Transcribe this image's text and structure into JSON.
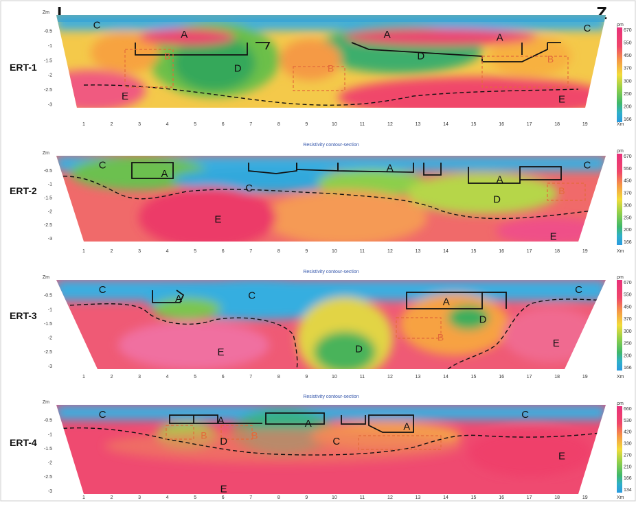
{
  "header": {
    "left_label": "I",
    "right_label": "Z"
  },
  "plot_title": "Resistivity contour-section",
  "depth_axis_label": "Zm",
  "x_axis_unit": "Xm",
  "colorbar_unit": "ρm",
  "x_ticks": [
    "1",
    "2",
    "3",
    "4",
    "5",
    "6",
    "7",
    "8",
    "9",
    "10",
    "11",
    "12",
    "13",
    "14",
    "15",
    "16",
    "17",
    "18",
    "19"
  ],
  "depth_ticks": [
    "-0.5",
    "-1",
    "-1.5",
    "-2",
    "-2.5",
    "-3"
  ],
  "panels": [
    {
      "name": "ERT-1",
      "colorbar_ticks": [
        "670",
        "550",
        "450",
        "370",
        "300",
        "250",
        "200",
        "166"
      ],
      "zones": [
        {
          "label": "C",
          "x": 1,
          "z": -0.3
        },
        {
          "label": "A",
          "x": 4.1,
          "z": -0.6
        },
        {
          "label": "A",
          "x": 11.3,
          "z": -0.6
        },
        {
          "label": "A",
          "x": 15.3,
          "z": -0.7
        },
        {
          "label": "C",
          "x": 18.4,
          "z": -0.4
        },
        {
          "label": "B",
          "x": 3.5,
          "z": -1.3
        },
        {
          "label": "D",
          "x": 6,
          "z": -1.7
        },
        {
          "label": "B",
          "x": 9.3,
          "z": -1.7
        },
        {
          "label": "D",
          "x": 12.5,
          "z": -1.3
        },
        {
          "label": "B",
          "x": 17.1,
          "z": -1.4
        },
        {
          "label": "E",
          "x": 2,
          "z": -2.6
        },
        {
          "label": "E",
          "x": 17.5,
          "z": -2.7
        }
      ]
    },
    {
      "name": "ERT-2",
      "colorbar_ticks": [
        "670",
        "550",
        "450",
        "370",
        "300",
        "250",
        "200",
        "166"
      ],
      "zones": [
        {
          "label": "C",
          "x": 1.2,
          "z": -0.3
        },
        {
          "label": "A",
          "x": 3.4,
          "z": -0.6
        },
        {
          "label": "A",
          "x": 11.4,
          "z": -0.4
        },
        {
          "label": "C",
          "x": 6.4,
          "z": -1.1
        },
        {
          "label": "A",
          "x": 15.3,
          "z": -0.8
        },
        {
          "label": "C",
          "x": 18.4,
          "z": -0.3
        },
        {
          "label": "B",
          "x": 17.5,
          "z": -1.2
        },
        {
          "label": "D",
          "x": 15.2,
          "z": -1.5
        },
        {
          "label": "E",
          "x": 5.3,
          "z": -2.2
        },
        {
          "label": "E",
          "x": 17.2,
          "z": -2.8
        }
      ]
    },
    {
      "name": "ERT-3",
      "colorbar_ticks": [
        "670",
        "550",
        "450",
        "370",
        "300",
        "250",
        "200",
        "166"
      ],
      "zones": [
        {
          "label": "C",
          "x": 1.2,
          "z": -0.3
        },
        {
          "label": "A",
          "x": 3.9,
          "z": -0.6
        },
        {
          "label": "C",
          "x": 6.5,
          "z": -0.5
        },
        {
          "label": "A",
          "x": 13.4,
          "z": -0.7
        },
        {
          "label": "D",
          "x": 14.7,
          "z": -1.3
        },
        {
          "label": "C",
          "x": 18.1,
          "z": -0.3
        },
        {
          "label": "B",
          "x": 13.2,
          "z": -1.9
        },
        {
          "label": "E",
          "x": 5.4,
          "z": -2.4
        },
        {
          "label": "D",
          "x": 10.3,
          "z": -2.3
        },
        {
          "label": "E",
          "x": 17.3,
          "z": -2.1
        }
      ]
    },
    {
      "name": "ERT-4",
      "colorbar_ticks": [
        "660",
        "530",
        "420",
        "330",
        "270",
        "210",
        "166",
        "134"
      ],
      "zones": [
        {
          "label": "C",
          "x": 1.2,
          "z": -0.3
        },
        {
          "label": "A",
          "x": 5.4,
          "z": -0.5
        },
        {
          "label": "A",
          "x": 8.5,
          "z": -0.6
        },
        {
          "label": "A",
          "x": 12,
          "z": -0.7
        },
        {
          "label": "C",
          "x": 16.2,
          "z": -0.3
        },
        {
          "label": "B",
          "x": 4.8,
          "z": -1.0
        },
        {
          "label": "D",
          "x": 5.5,
          "z": -1.2
        },
        {
          "label": "B",
          "x": 6.6,
          "z": -1.0
        },
        {
          "label": "C",
          "x": 9.5,
          "z": -1.2
        },
        {
          "label": "E",
          "x": 17.5,
          "z": -1.7
        },
        {
          "label": "E",
          "x": 5.5,
          "z": -2.8
        }
      ]
    }
  ]
}
